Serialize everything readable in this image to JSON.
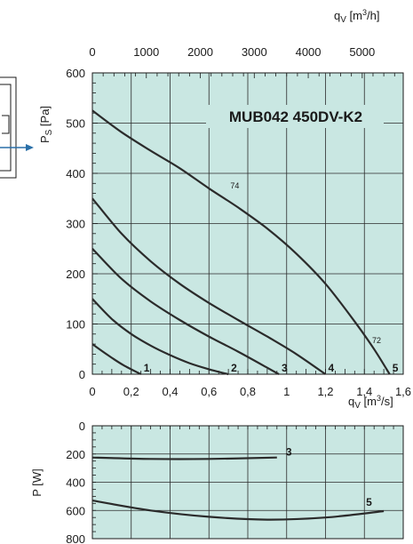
{
  "chart_data": [
    {
      "type": "line",
      "title": "MUB042 450DV-K2",
      "xlabel": "q_V [m3/s]",
      "x2label": "q_V [m3/h]",
      "ylabel": "P_S [Pa]",
      "xlim": [
        0,
        1.6
      ],
      "ylim": [
        0,
        600
      ],
      "x2lim_m3h": [
        0,
        5760
      ],
      "x_ticks": [
        "0",
        "0,2",
        "0,4",
        "0,6",
        "0,8",
        "1",
        "1,2",
        "1,4",
        "1,6"
      ],
      "x2_ticks": [
        "0",
        "1000",
        "2000",
        "3000",
        "4000",
        "5000"
      ],
      "y_ticks": [
        "0",
        "100",
        "200",
        "300",
        "400",
        "500",
        "600"
      ],
      "grid": true,
      "background_color": "#c9e7e2",
      "series": [
        {
          "name": "1",
          "x": [
            0,
            0.08,
            0.16,
            0.25
          ],
          "y": [
            60,
            38,
            18,
            0
          ]
        },
        {
          "name": "2",
          "x": [
            0,
            0.1,
            0.2,
            0.3,
            0.4,
            0.5,
            0.6,
            0.7
          ],
          "y": [
            150,
            110,
            80,
            57,
            38,
            22,
            10,
            0
          ]
        },
        {
          "name": "3",
          "x": [
            0,
            0.15,
            0.3,
            0.45,
            0.6,
            0.75,
            0.9,
            0.96
          ],
          "y": [
            250,
            190,
            145,
            108,
            75,
            45,
            13,
            0
          ]
        },
        {
          "name": "4",
          "x": [
            0,
            0.15,
            0.3,
            0.45,
            0.6,
            0.75,
            0.9,
            1.05,
            1.2
          ],
          "y": [
            350,
            280,
            225,
            180,
            142,
            108,
            75,
            40,
            0
          ]
        },
        {
          "name": "5",
          "x": [
            0,
            0.15,
            0.3,
            0.45,
            0.6,
            0.75,
            0.9,
            1.05,
            1.2,
            1.35,
            1.45,
            1.53
          ],
          "y": [
            525,
            482,
            445,
            410,
            370,
            332,
            290,
            240,
            180,
            105,
            50,
            0
          ]
        }
      ],
      "sound_levels": [
        {
          "text": "74",
          "x": 0.71,
          "y": 370
        },
        {
          "text": "72",
          "x": 1.44,
          "y": 62
        }
      ]
    },
    {
      "type": "line",
      "ylabel": "P [W]",
      "xlim": [
        0,
        1.6
      ],
      "ylim": [
        0,
        800
      ],
      "y_inverted": true,
      "y_ticks": [
        "0",
        "200",
        "400",
        "600",
        "800"
      ],
      "grid": true,
      "background_color": "#c9e7e2",
      "series": [
        {
          "name": "3",
          "x": [
            0,
            0.3,
            0.6,
            0.95
          ],
          "y": [
            225,
            235,
            235,
            225
          ]
        },
        {
          "name": "5",
          "x": [
            0,
            0.3,
            0.6,
            0.9,
            1.2,
            1.5
          ],
          "y": [
            530,
            600,
            645,
            665,
            650,
            605
          ]
        }
      ]
    }
  ]
}
